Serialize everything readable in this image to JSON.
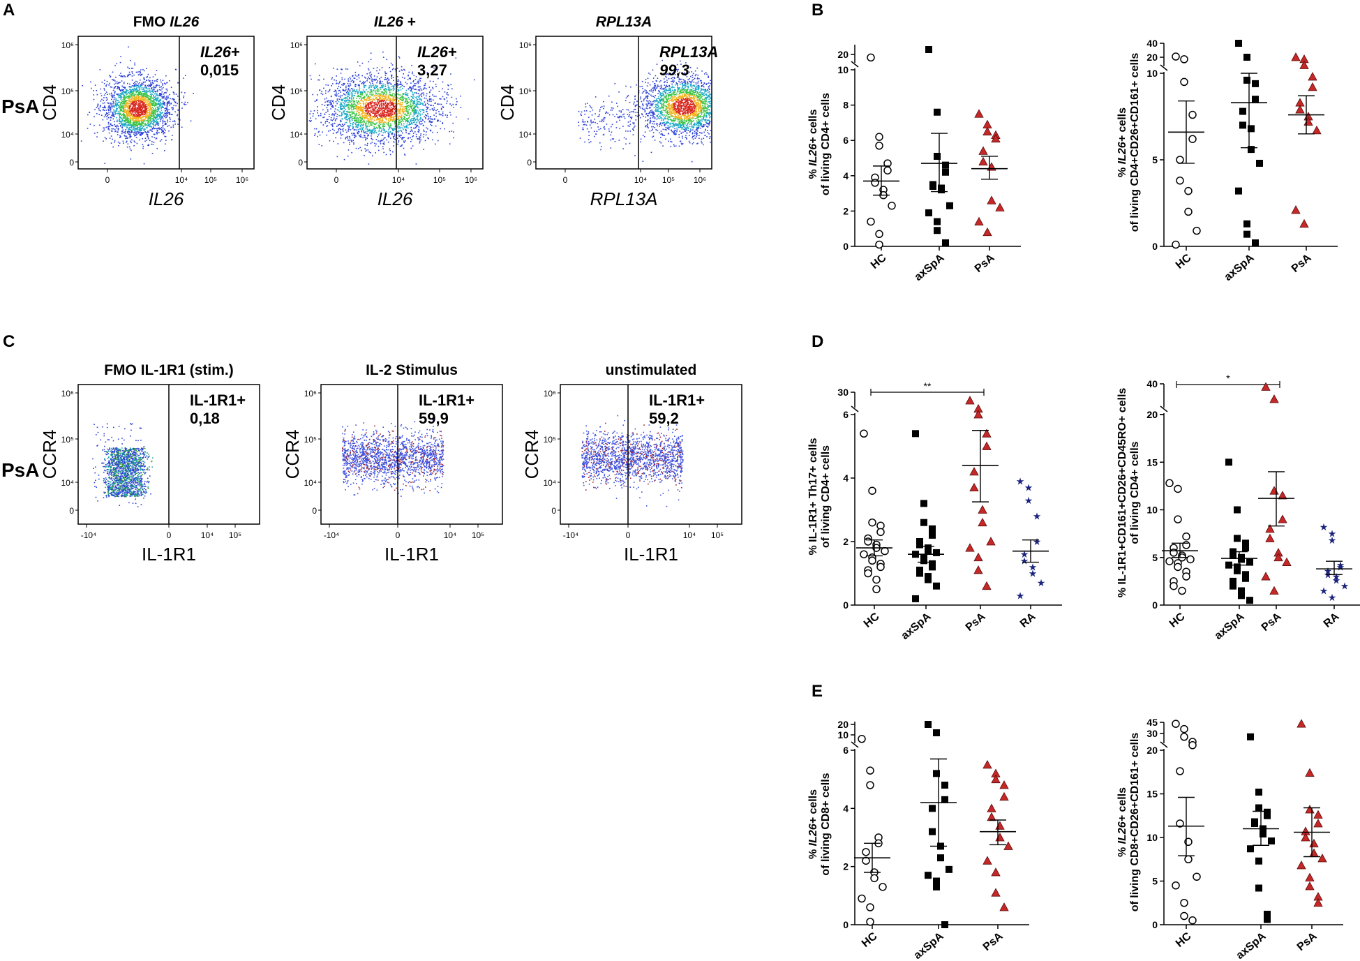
{
  "colors": {
    "hc": "#ffffff",
    "axspa": "#000000",
    "psa": "#c62828",
    "ra": "#1a237e",
    "dot_blue": "#2a3fd6",
    "line": "#000000"
  },
  "panel_labels": [
    "A",
    "B",
    "C",
    "D",
    "E"
  ],
  "flow_A": {
    "row_label": "PsA",
    "plots": [
      {
        "title_plain": "FMO ",
        "title_italic": "IL26",
        "gate_name": "IL26",
        "gate_suffix": "+",
        "gate_value": "0,015",
        "ylabel": "CD4",
        "xlabel": "IL26",
        "x_italic": true,
        "yticks": [
          "10⁶",
          "10⁵",
          "10⁴",
          "0"
        ],
        "xticks": [
          "0",
          "10⁴",
          "10⁵",
          "10⁶"
        ],
        "population": "tight"
      },
      {
        "title_plain": " +",
        "title_italic": "IL26",
        "gate_name": "IL26",
        "gate_suffix": "+",
        "gate_value": "3,27",
        "ylabel": "CD4",
        "xlabel": "IL26",
        "x_italic": true,
        "yticks": [
          "10⁶",
          "10⁵",
          "10⁴",
          "0"
        ],
        "xticks": [
          "0",
          "10⁴",
          "10⁵",
          "10⁶"
        ],
        "population": "wide"
      },
      {
        "title_plain": "",
        "title_italic": "RPL13A",
        "gate_name": "RPL13A",
        "gate_suffix": "",
        "gate_value": "99,3",
        "ylabel": "CD4",
        "xlabel": "RPL13A",
        "x_italic": true,
        "yticks": [
          "10⁶",
          "10⁵",
          "10⁴",
          "0"
        ],
        "xticks": [
          "0",
          "10⁴",
          "10⁵",
          "10⁶"
        ],
        "population": "right"
      }
    ]
  },
  "flow_C": {
    "row_label": "PsA",
    "plots": [
      {
        "title": "FMO IL-1R1 (stim.)",
        "gate_name": "IL-1R1+",
        "gate_value": "0,18",
        "ylabel": "CCR4",
        "xlabel": "IL-1R1",
        "yticks": [
          "10⁶",
          "10⁵",
          "10⁴",
          "0"
        ],
        "xticks": [
          "-10⁴",
          "0",
          "10⁴",
          "10⁵"
        ],
        "population": "fmo"
      },
      {
        "title": "IL-2 Stimulus",
        "gate_name": "IL-1R1+",
        "gate_value": "59,9",
        "ylabel": "CCR4",
        "xlabel": "IL-1R1",
        "yticks": [
          "10⁶",
          "10⁵",
          "10⁴",
          "0"
        ],
        "xticks": [
          "-10⁴",
          "0",
          "10⁴",
          "10⁵"
        ],
        "population": "spread"
      },
      {
        "title": "unstimulated",
        "gate_name": "IL-1R1+",
        "gate_value": "59,2",
        "ylabel": "CCR4",
        "xlabel": "IL-1R1",
        "yticks": [
          "10⁶",
          "10⁵",
          "10⁴",
          "0"
        ],
        "xticks": [
          "-10⁴",
          "0",
          "10⁴",
          "10⁵"
        ],
        "population": "spread"
      }
    ]
  },
  "chart_data": [
    {
      "id": "B1",
      "type": "scatter",
      "ylabel_lines": [
        [
          "% ",
          "IL26+",
          " cells"
        ],
        [
          "of living CD4+ cells"
        ]
      ],
      "categories": [
        "HC",
        "axSpA",
        "PsA"
      ],
      "axis": {
        "ticks": [
          "0",
          "2",
          "4",
          "6",
          "8",
          "10"
        ],
        "top_ticks": [
          "20"
        ]
      },
      "groups": [
        {
          "name": "HC",
          "marker": "circle",
          "values": [
            19,
            6.2,
            5.7,
            4.7,
            4.3,
            3.9,
            3.6,
            3.2,
            2.9,
            2.3,
            1.4,
            0.7,
            0.1
          ],
          "mean": 3.7,
          "sem_low": 2.9,
          "sem_high": 4.55
        },
        {
          "name": "axSpA",
          "marker": "square",
          "values": [
            22,
            7.6,
            5.1,
            4.6,
            4.2,
            3.5,
            3.4,
            3.3,
            3.2,
            2.3,
            1.9,
            1.4,
            0.9,
            0.2
          ],
          "mean": 4.7,
          "sem_low": 3.1,
          "sem_high": 6.4
        },
        {
          "name": "PsA",
          "marker": "triangle",
          "values": [
            7.5,
            6.9,
            6.5,
            6.3,
            6.1,
            5.4,
            4.8,
            4.5,
            2.6,
            2.2,
            1.4,
            0.8
          ],
          "mean": 4.4,
          "sem_low": 3.8,
          "sem_high": 5.1
        }
      ]
    },
    {
      "id": "B2",
      "type": "scatter",
      "ylabel_lines": [
        [
          "% ",
          "IL26+",
          " cells"
        ],
        [
          "of living CD4+CD26+CD161+ cells"
        ]
      ],
      "categories": [
        "HC",
        "axSpA",
        "PsA"
      ],
      "axis": {
        "ticks": [
          "0",
          "5",
          "10"
        ],
        "top_ticks": [
          "20",
          "40"
        ]
      },
      "groups": [
        {
          "name": "HC",
          "marker": "circle",
          "values": [
            21,
            19,
            9.5,
            7.6,
            6.2,
            5.0,
            3.8,
            3.2,
            2.0,
            0.9,
            0.1
          ],
          "mean": 6.6,
          "sem_low": 4.8,
          "sem_high": 8.4
        },
        {
          "name": "axSpA",
          "marker": "square",
          "values": [
            40,
            20,
            9.6,
            9.4,
            8.5,
            7.8,
            7.0,
            6.8,
            5.6,
            4.8,
            3.2,
            1.3,
            0.7,
            0.2
          ],
          "mean": 8.3,
          "sem_low": 5.7,
          "sem_high": 11.0
        },
        {
          "name": "PsA",
          "marker": "triangle",
          "values": [
            20,
            19,
            16,
            9.8,
            9.2,
            8.3,
            7.9,
            7.5,
            7.2,
            6.7,
            2.1,
            1.3
          ],
          "mean": 7.6,
          "sem_low": 6.5,
          "sem_high": 8.7
        }
      ]
    },
    {
      "id": "D1",
      "type": "scatter",
      "ylabel_lines": [
        [
          "% IL-1R1+ Th17+ cells"
        ],
        [
          "of living CD4+ cells"
        ]
      ],
      "categories": [
        "HC",
        "axSpA",
        "PsA",
        "RA"
      ],
      "axis": {
        "ticks": [
          "0",
          "2",
          "4",
          "6"
        ],
        "top_ticks": [
          "30"
        ]
      },
      "significance": {
        "label": "**",
        "from": "HC",
        "to": "PsA"
      },
      "groups": [
        {
          "name": "HC",
          "marker": "circle",
          "values": [
            5.4,
            3.6,
            2.6,
            2.5,
            2.3,
            2.1,
            2.0,
            1.9,
            1.8,
            1.7,
            1.6,
            1.5,
            1.4,
            1.3,
            1.2,
            1.1,
            1.0,
            0.8,
            0.5
          ],
          "mean": 1.8,
          "sem_low": 1.55,
          "sem_high": 2.05
        },
        {
          "name": "axSpA",
          "marker": "square",
          "values": [
            5.4,
            3.2,
            2.6,
            2.4,
            2.2,
            2.0,
            1.9,
            1.8,
            1.7,
            1.65,
            1.6,
            1.5,
            1.4,
            1.3,
            1.2,
            1.1,
            1.0,
            0.9,
            0.8,
            0.6,
            0.2
          ],
          "mean": 1.6,
          "sem_low": 1.35,
          "sem_high": 1.85
        },
        {
          "name": "PsA",
          "marker": "triangle",
          "values": [
            8,
            7,
            6,
            5.4,
            5.0,
            4.2,
            3.7,
            3.0,
            2.6,
            2.0,
            1.8,
            1.5,
            1.1,
            0.6
          ],
          "mean": 4.4,
          "sem_low": 3.25,
          "sem_high": 5.5
        },
        {
          "name": "RA",
          "marker": "star",
          "values": [
            3.9,
            3.7,
            3.3,
            2.8,
            2.0,
            1.6,
            1.4,
            1.2,
            1.0,
            0.7,
            0.3
          ],
          "mean": 1.7,
          "sem_low": 1.35,
          "sem_high": 2.05
        }
      ]
    },
    {
      "id": "D2",
      "type": "scatter",
      "ylabel_lines": [
        [
          "% IL-1R1+CD161+CD26+CD45RO+ cells"
        ],
        [
          "of living CD4+ cells"
        ]
      ],
      "categories": [
        "HC",
        "axSpA",
        "PsA",
        "RA"
      ],
      "axis": {
        "ticks": [
          "0",
          "5",
          "10",
          "15",
          "20"
        ],
        "top_ticks": [
          "20",
          "40"
        ]
      },
      "significance": {
        "label": "*",
        "from": "HC",
        "to": "PsA"
      },
      "groups": [
        {
          "name": "HC",
          "marker": "circle",
          "values": [
            12.8,
            12.2,
            9.0,
            7.2,
            6.3,
            6.0,
            5.5,
            5.2,
            5.0,
            4.8,
            4.6,
            4.4,
            4.0,
            3.5,
            3.0,
            2.5,
            2.0,
            1.5
          ],
          "mean": 5.7,
          "sem_low": 5.0,
          "sem_high": 6.5
        },
        {
          "name": "axSpA",
          "marker": "square",
          "values": [
            15.0,
            10.0,
            7.0,
            6.5,
            6.0,
            5.6,
            5.2,
            5.0,
            4.8,
            4.5,
            4.2,
            4.0,
            3.6,
            3.2,
            2.8,
            2.5,
            2.0,
            1.5,
            1.0,
            0.5
          ],
          "mean": 4.9,
          "sem_low": 4.2,
          "sem_high": 5.6
        },
        {
          "name": "PsA",
          "marker": "triangle",
          "values": [
            38,
            30,
            12.0,
            11.5,
            9.0,
            8.0,
            7.0,
            5.5,
            5.0,
            4.5,
            3.0,
            1.5
          ],
          "mean": 11.2,
          "sem_low": 8.3,
          "sem_high": 14.0
        },
        {
          "name": "RA",
          "marker": "star",
          "values": [
            8.2,
            7.5,
            6.8,
            4.2,
            4.0,
            3.6,
            3.2,
            3.0,
            2.6,
            2.0,
            1.5,
            0.8
          ],
          "mean": 3.8,
          "sem_low": 3.2,
          "sem_high": 4.6
        }
      ]
    },
    {
      "id": "E1",
      "type": "scatter",
      "ylabel_lines": [
        [
          "% ",
          "IL26+",
          " cells"
        ],
        [
          "of living CD8+ cells"
        ]
      ],
      "categories": [
        "HC",
        "axSpA",
        "PsA"
      ],
      "axis": {
        "ticks": [
          "0",
          "2",
          "4",
          "6"
        ],
        "top_ticks": [
          "10",
          "20"
        ]
      },
      "groups": [
        {
          "name": "HC",
          "marker": "circle",
          "values": [
            9,
            5.3,
            4.8,
            3.0,
            2.8,
            2.5,
            2.2,
            1.8,
            1.6,
            1.3,
            0.9,
            0.6,
            0.1
          ],
          "mean": 2.3,
          "sem_low": 1.8,
          "sem_high": 2.8
        },
        {
          "name": "axSpA",
          "marker": "square",
          "values": [
            20,
            12,
            5.2,
            4.8,
            4.3,
            4.0,
            3.2,
            2.7,
            2.3,
            1.9,
            1.7,
            1.5,
            1.3,
            0.0
          ],
          "mean": 4.2,
          "sem_low": 2.7,
          "sem_high": 5.7
        },
        {
          "name": "PsA",
          "marker": "triangle",
          "values": [
            5.5,
            5.2,
            5.0,
            4.8,
            4.4,
            4.0,
            3.7,
            3.4,
            3.0,
            2.7,
            2.2,
            1.8,
            1.1,
            0.6
          ],
          "mean": 3.2,
          "sem_low": 2.75,
          "sem_high": 3.6
        }
      ]
    },
    {
      "id": "E2",
      "type": "scatter",
      "ylabel_lines": [
        [
          "% ",
          "IL26+",
          " cells"
        ],
        [
          "of living CD8+CD26+CD161+ cells"
        ]
      ],
      "categories": [
        "HC",
        "axSpA",
        "PsA"
      ],
      "axis": {
        "ticks": [
          "0",
          "5",
          "10",
          "15",
          "20"
        ],
        "top_ticks": [
          "30",
          "45"
        ]
      },
      "groups": [
        {
          "name": "HC",
          "marker": "circle",
          "values": [
            43,
            36,
            28,
            25,
            23,
            17.6,
            11.6,
            9.5,
            7.5,
            5.5,
            4.5,
            2.5,
            1.0,
            0.5
          ],
          "mean": 11.3,
          "sem_low": 7.9,
          "sem_high": 14.6
        },
        {
          "name": "axSpA",
          "marker": "square",
          "values": [
            28,
            15.2,
            13.4,
            12.9,
            12.5,
            11.8,
            11.6,
            11.0,
            10.4,
            9.6,
            8.7,
            7.3,
            4.2,
            1.2,
            0.6
          ],
          "mean": 11.0,
          "sem_low": 9.1,
          "sem_high": 13.0
        },
        {
          "name": "PsA",
          "marker": "triangle",
          "values": [
            43,
            17.4,
            13.2,
            12.6,
            11.6,
            10.7,
            10.0,
            9.3,
            8.2,
            7.6,
            6.8,
            5.4,
            4.4,
            3.2,
            2.5
          ],
          "mean": 10.6,
          "sem_low": 7.8,
          "sem_high": 13.4
        }
      ]
    }
  ]
}
